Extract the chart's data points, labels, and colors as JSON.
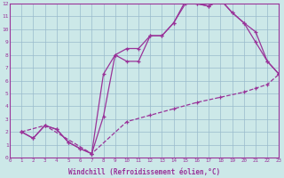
{
  "bg_color": "#cce8e8",
  "line_color": "#993399",
  "grid_color": "#99bbcc",
  "xlabel": "Windchill (Refroidissement éolien,°C)",
  "xmin": 0,
  "xmax": 23,
  "ymin": 0,
  "ymax": 12,
  "line1_x": [
    1,
    2,
    3,
    4,
    5,
    6,
    7,
    8,
    9,
    10,
    11,
    12,
    13,
    14,
    15,
    16,
    17,
    18,
    19,
    20,
    21,
    22,
    23
  ],
  "line1_y": [
    2,
    1.5,
    2.5,
    2.2,
    1.2,
    0.7,
    0.3,
    6.5,
    8.0,
    8.5,
    8.5,
    9.5,
    9.5,
    10.5,
    12.2,
    12.0,
    11.8,
    12.3,
    11.3,
    10.5,
    9.0,
    7.5,
    6.5
  ],
  "line2_x": [
    1,
    2,
    3,
    4,
    5,
    6,
    7,
    8,
    9,
    10,
    11,
    12,
    13,
    14,
    15,
    16,
    17,
    18,
    19,
    20,
    21,
    22,
    23
  ],
  "line2_y": [
    2,
    1.5,
    2.5,
    2.2,
    1.2,
    0.7,
    0.3,
    3.2,
    8.0,
    7.5,
    7.5,
    9.5,
    9.5,
    10.5,
    12.0,
    12.0,
    11.8,
    12.3,
    11.3,
    10.5,
    9.8,
    7.5,
    6.5
  ],
  "line3_x": [
    1,
    3,
    7,
    10,
    12,
    14,
    16,
    18,
    20,
    21,
    22,
    23
  ],
  "line3_y": [
    2,
    2.5,
    0.3,
    2.8,
    3.3,
    3.8,
    4.3,
    4.7,
    5.1,
    5.4,
    5.7,
    6.5
  ]
}
